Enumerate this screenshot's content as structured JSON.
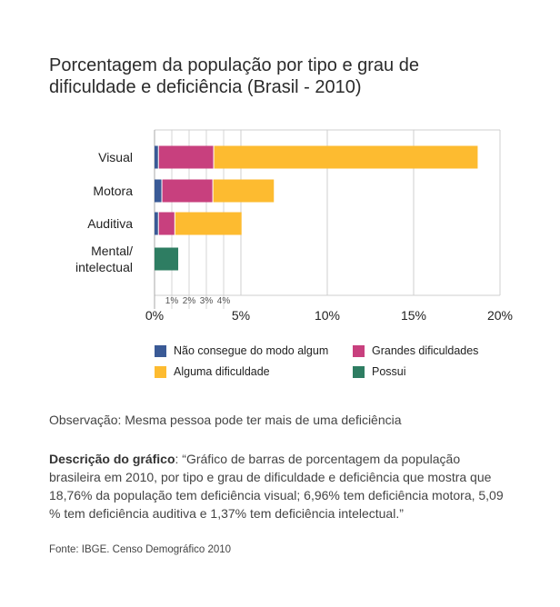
{
  "title": "Porcentagem da população por tipo e grau de dificuldade e deficiência (Brasil - 2010)",
  "chart_data": {
    "type": "bar",
    "orientation": "horizontal",
    "stacked": true,
    "categories": [
      "Visual",
      "Motora",
      "Auditiva",
      "Mental/ intelectual"
    ],
    "series": [
      {
        "name": "Não consegue do modo algum",
        "color": "#3a5a96",
        "values": [
          0.25,
          0.45,
          0.25,
          0
        ]
      },
      {
        "name": "Grandes dificuldades",
        "color": "#c8407e",
        "values": [
          3.2,
          2.95,
          0.95,
          0
        ]
      },
      {
        "name": "Alguma dificuldade",
        "color": "#fdbb30",
        "values": [
          15.31,
          3.56,
          3.89,
          0
        ]
      },
      {
        "name": "Possui",
        "color": "#2e7d62",
        "values": [
          0,
          0,
          0,
          1.37
        ]
      }
    ],
    "xlim": [
      0,
      20
    ],
    "x_ticks": [
      "0%",
      "5%",
      "10%",
      "15%",
      "20%"
    ],
    "x_tick_values": [
      0,
      5,
      10,
      15,
      20
    ],
    "minor_ticks": [
      "1%",
      "2%",
      "3%",
      "4%"
    ],
    "minor_tick_values": [
      1,
      2,
      3,
      4
    ],
    "grid": true,
    "legend_placement": "bottom"
  },
  "note": "Observação: Mesma pessoa pode ter mais de uma deficiência",
  "description_label": "Descrição do gráfico",
  "description_text": ": “Gráfico de barras de porcentagem da população brasileira em 2010, por tipo e grau de dificuldade e deficiência que mostra que 18,76% da população tem deficiência visual; 6,96% tem deficiência motora, 5,09 % tem deficiência auditiva e 1,37% tem deficiência intelectual.”",
  "source": "Fonte: IBGE. Censo Demográfico 2010"
}
